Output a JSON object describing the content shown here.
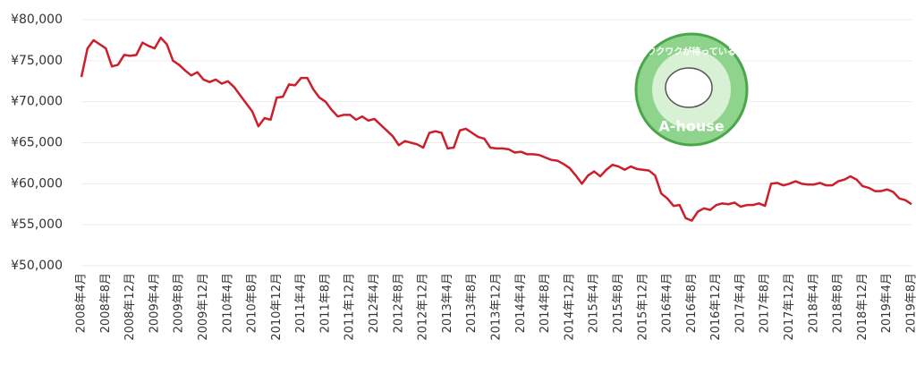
{
  "chart_data": {
    "type": "line",
    "categories": [
      "2008年4月",
      null,
      null,
      null,
      "2008年8月",
      null,
      null,
      null,
      "2008年12月",
      null,
      null,
      null,
      "2009年4月",
      null,
      null,
      null,
      "2009年8月",
      null,
      null,
      null,
      "2009年12月",
      null,
      null,
      null,
      "2010年4月",
      null,
      null,
      null,
      "2010年8月",
      null,
      null,
      null,
      "2010年12月",
      null,
      null,
      null,
      "2011年4月",
      null,
      null,
      null,
      "2011年8月",
      null,
      null,
      null,
      "2011年12月",
      null,
      null,
      null,
      "2012年4月",
      null,
      null,
      null,
      "2012年8月",
      null,
      null,
      null,
      "2012年12月",
      null,
      null,
      null,
      "2013年4月",
      null,
      null,
      null,
      "2013年8月",
      null,
      null,
      null,
      "2013年12月",
      null,
      null,
      null,
      "2014年4月",
      null,
      null,
      null,
      "2014年8月",
      null,
      null,
      null,
      "2014年12月",
      null,
      null,
      null,
      "2015年4月",
      null,
      null,
      null,
      "2015年8月",
      null,
      null,
      null,
      "2015年12月",
      null,
      null,
      null,
      "2016年4月",
      null,
      null,
      null,
      "2016年8月",
      null,
      null,
      null,
      "2016年12月",
      null,
      null,
      null,
      "2017年4月",
      null,
      null,
      null,
      "2017年8月",
      null,
      null,
      null,
      "2017年12月",
      null,
      null,
      null,
      "2018年4月",
      null,
      null,
      null,
      "2018年8月",
      null,
      null,
      null,
      "2018年12月",
      null,
      null,
      null,
      "2019年4月",
      null,
      null,
      null,
      "2019年8月"
    ],
    "series": [
      {
        "color": "#cc1f2b",
        "values": [
          73000,
          76500,
          77500,
          77000,
          76500,
          74300,
          74500,
          75700,
          75600,
          75700,
          77200,
          76800,
          76500,
          77800,
          77000,
          75000,
          74500,
          73800,
          73200,
          73600,
          72700,
          72400,
          72700,
          72200,
          72500,
          71800,
          70800,
          69800,
          68800,
          67000,
          68000,
          67800,
          70500,
          70600,
          72100,
          72000,
          72900,
          72900,
          71500,
          70500,
          70000,
          69000,
          68200,
          68400,
          68400,
          67800,
          68200,
          67700,
          67900,
          67200,
          66500,
          65800,
          64700,
          65200,
          65000,
          64800,
          64400,
          66200,
          66400,
          66200,
          64300,
          64400,
          66500,
          66700,
          66200,
          65700,
          65500,
          64400,
          64300,
          64300,
          64200,
          63800,
          63900,
          63600,
          63600,
          63500,
          63200,
          62900,
          62800,
          62400,
          61900,
          61000,
          60000,
          61000,
          61500,
          60900,
          61700,
          62300,
          62100,
          61700,
          62100,
          61800,
          61700,
          61600,
          61000,
          58800,
          58200,
          57300,
          57400,
          55800,
          55500,
          56600,
          57000,
          56800,
          57400,
          57600,
          57500,
          57700,
          57200,
          57400,
          57400,
          57600,
          57300,
          60000,
          60100,
          59800,
          60000,
          60300,
          60000,
          59900,
          59900,
          60100,
          59800,
          59800,
          60300,
          60500,
          60900,
          60500,
          59700,
          59500,
          59100,
          59100,
          59300,
          59000,
          58200,
          58000,
          57500
        ]
      }
    ],
    "ylim": [
      50000,
      80000
    ],
    "yticks": [
      {
        "value": 50000,
        "label": "¥50,000"
      },
      {
        "value": 55000,
        "label": "¥55,000"
      },
      {
        "value": 60000,
        "label": "¥60,000"
      },
      {
        "value": 65000,
        "label": "¥65,000"
      },
      {
        "value": 70000,
        "label": "¥70,000"
      },
      {
        "value": 75000,
        "label": "¥75,000"
      },
      {
        "value": 80000,
        "label": "¥80,000"
      }
    ],
    "grid": true,
    "logo": {
      "top": "ワクワクが待っている",
      "bottom": "A-house"
    }
  }
}
